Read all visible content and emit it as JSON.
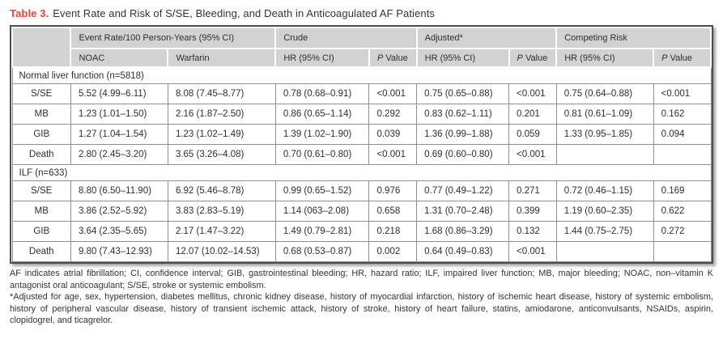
{
  "title": {
    "label": "Table 3.",
    "text": "Event Rate and Risk of S/SE, Bleeding, and Death in Anticoagulated AF Patients"
  },
  "table": {
    "column_groups": [
      {
        "label": "Event Rate/100 Person-Years (95% CI)",
        "span": 2
      },
      {
        "label": "Crude",
        "span": 2
      },
      {
        "label": "Adjusted*",
        "span": 2
      },
      {
        "label": "Competing Risk",
        "span": 2
      }
    ],
    "sub_headers": [
      "NOAC",
      "Warfarin",
      "HR (95% CI)",
      "P Value",
      "HR (95% CI)",
      "P Value",
      "HR (95% CI)",
      "P Value"
    ],
    "sections": [
      {
        "header": "Normal liver function (n=5818)",
        "rows": [
          {
            "label": "S/SE",
            "cells": [
              "5.52 (4.99–6.11)",
              "8.08 (7.45–8.77)",
              "0.78 (0.68–0.91)",
              "<0.001",
              "0.75 (0.65–0.88)",
              "<0.001",
              "0.75 (0.64–0.88)",
              "<0.001"
            ]
          },
          {
            "label": "MB",
            "cells": [
              "1.23 (1.01–1.50)",
              "2.16 (1.87–2.50)",
              "0.86 (0.65–1.14)",
              "0.292",
              "0.83 (0.62–1.11)",
              "0.201",
              "0.81 (0.61–1.09)",
              "0.162"
            ]
          },
          {
            "label": "GIB",
            "cells": [
              "1.27 (1.04–1.54)",
              "1.23 (1.02–1.49)",
              "1.39 (1.02–1.90)",
              "0.039",
              "1.36 (0.99–1.88)",
              "0.059",
              "1.33 (0.95–1.85)",
              "0.094"
            ]
          },
          {
            "label": "Death",
            "cells": [
              "2.80 (2.45–3.20)",
              "3.65 (3.26–4.08)",
              "0.70 (0.61–0.80)",
              "<0.001",
              "0.69 (0.60–0.80)",
              "<0.001",
              "",
              ""
            ]
          }
        ]
      },
      {
        "header": "ILF (n=633)",
        "rows": [
          {
            "label": "S/SE",
            "cells": [
              "8.80 (6.50–11.90)",
              "6.92 (5.46–8.78)",
              "0.99 (0.65–1.52)",
              "0.976",
              "0.77 (0.49–1.22)",
              "0.271",
              "0.72 (0.46–1.15)",
              "0.169"
            ]
          },
          {
            "label": "MB",
            "cells": [
              "3.86 (2.52–5.92)",
              "3.83 (2.83–5.19)",
              "1.14 (063–2.08)",
              "0.658",
              "1.31 (0.70–2.48)",
              "0.399",
              "1.19 (0.60–2.35)",
              "0.622"
            ]
          },
          {
            "label": "GIB",
            "cells": [
              "3.64 (2.35–5.65)",
              "2.17 (1.47–3.22)",
              "1.49 (0.79–2.81)",
              "0.218",
              "1.68 (0.86–3.29)",
              "0.132",
              "1.44 (0.75–2.75)",
              "0.272"
            ]
          },
          {
            "label": "Death",
            "cells": [
              "9.80 (7.43–12.93)",
              "12.07 (10.02–14.53)",
              "0.68 (0.53–0.87)",
              "0.002",
              "0.64 (0.49–0.83)",
              "<0.001",
              "",
              ""
            ]
          }
        ]
      }
    ]
  },
  "footnotes": {
    "abbreviations": "AF indicates atrial fibrillation; CI, confidence interval; GIB, gastrointestinal bleeding; HR, hazard ratio; ILF, impaired liver function; MB, major bleeding; NOAC, non–vitamin K antagonist oral anticoagulant; S/SE, stroke or systemic embolism.",
    "adjustment": "*Adjusted for age, sex, hypertension, diabetes mellitus, chronic kidney disease, history of myocardial infarction, history of ischemic heart disease, history of systemic embolism, history of peripheral vascular disease, history of transient ischemic attack, history of stroke, history of heart failure, statins, amiodarone, anticonvulsants, NSAIDs, aspirin, clopidogrel, and ticagrelor."
  },
  "colors": {
    "title_accent": "#e8413c",
    "header_bg": "#d2d2d2",
    "cell_border": "#8f8f8f",
    "outer_border": "#4d4d4d",
    "text": "#2e2e2e"
  }
}
